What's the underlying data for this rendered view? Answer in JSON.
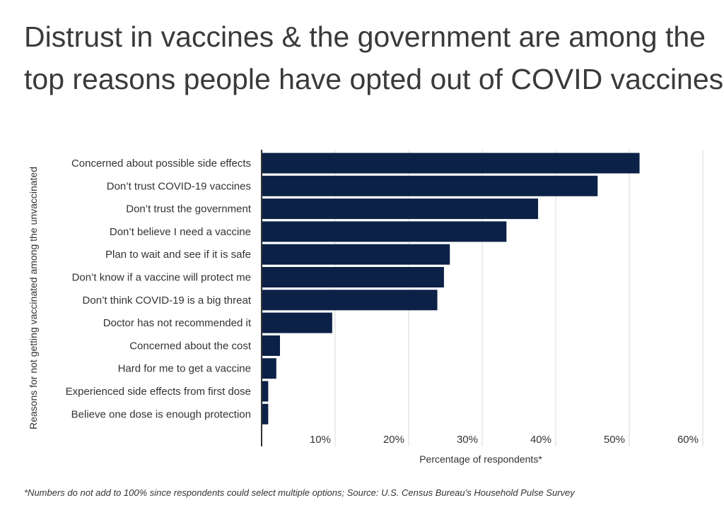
{
  "title_line1": "Distrust in vaccines & the government are among the",
  "title_line2": "top reasons people have opted out of COVID vaccines",
  "footnote": "*Numbers do not add to 100% since respondents could select multiple options; Source:  U.S. Census Bureau’s Household Pulse Survey",
  "colors": {
    "bar": "#0c2146",
    "grid": "#d9d9d9",
    "axis": "#333333"
  },
  "chart_data": {
    "type": "bar",
    "orientation": "horizontal",
    "categories": [
      "Concerned about possible side effects",
      "Don’t trust COVID-19 vaccines",
      "Don’t trust the government",
      "Don’t believe I need a vaccine",
      "Plan to wait and see if it is safe",
      "Don’t know if a vaccine will protect me",
      "Don’t think COVID-19 is a big threat",
      "Doctor has not recommended it",
      "Concerned about the cost",
      "Hard for me to get a vaccine",
      "Experienced side effects from first dose",
      "Believe one dose is enough protection"
    ],
    "values": [
      51.4,
      45.7,
      37.6,
      33.3,
      25.6,
      24.8,
      23.9,
      9.6,
      2.5,
      2.0,
      0.9,
      0.9
    ],
    "xlabel": "Percentage of respondents*",
    "ylabel": "Reasons for not getting vaccinated among the unvaccinated",
    "xlim": [
      0,
      60
    ],
    "xticks": [
      10,
      20,
      30,
      40,
      50,
      60
    ],
    "xtick_labels": [
      "10%",
      "20%",
      "30%",
      "40%",
      "50%",
      "60%"
    ],
    "grid": "vertical"
  }
}
